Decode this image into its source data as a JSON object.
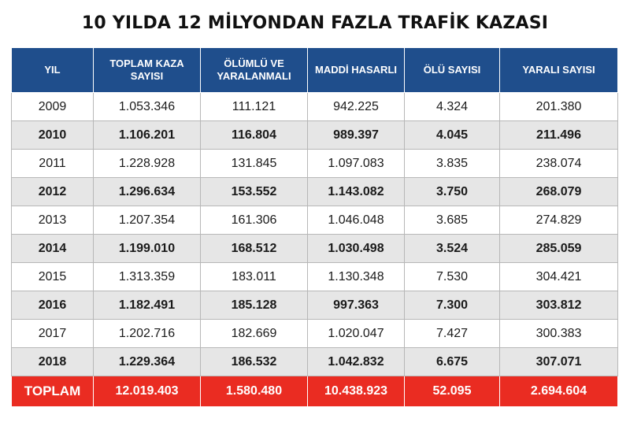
{
  "title": "10 YILDA 12 MİLYONDAN FAZLA TRAFİK KAZASI",
  "colors": {
    "header_bg": "#1f4e8c",
    "total_bg": "#ea2c22",
    "alt_row_bg": "#e6e6e6"
  },
  "table": {
    "headers": [
      "YIL",
      "TOPLAM KAZA SAYISI",
      "ÖLÜMLÜ VE YARALANMALI",
      "MADDİ HASARLI",
      "ÖLÜ SAYISI",
      "YARALI SAYISI"
    ],
    "rows": [
      [
        "2009",
        "1.053.346",
        "111.121",
        "942.225",
        "4.324",
        "201.380"
      ],
      [
        "2010",
        "1.106.201",
        "116.804",
        "989.397",
        "4.045",
        "211.496"
      ],
      [
        "2011",
        "1.228.928",
        "131.845",
        "1.097.083",
        "3.835",
        "238.074"
      ],
      [
        "2012",
        "1.296.634",
        "153.552",
        "1.143.082",
        "3.750",
        "268.079"
      ],
      [
        "2013",
        "1.207.354",
        "161.306",
        "1.046.048",
        "3.685",
        "274.829"
      ],
      [
        "2014",
        "1.199.010",
        "168.512",
        "1.030.498",
        "3.524",
        "285.059"
      ],
      [
        "2015",
        "1.313.359",
        "183.011",
        "1.130.348",
        "7.530",
        "304.421"
      ],
      [
        "2016",
        "1.182.491",
        "185.128",
        "997.363",
        "7.300",
        "303.812"
      ],
      [
        "2017",
        "1.202.716",
        "182.669",
        "1.020.047",
        "7.427",
        "300.383"
      ],
      [
        "2018",
        "1.229.364",
        "186.532",
        "1.042.832",
        "6.675",
        "307.071"
      ]
    ],
    "total": [
      "TOPLAM",
      "12.019.403",
      "1.580.480",
      "10.438.923",
      "52.095",
      "2.694.604"
    ]
  }
}
